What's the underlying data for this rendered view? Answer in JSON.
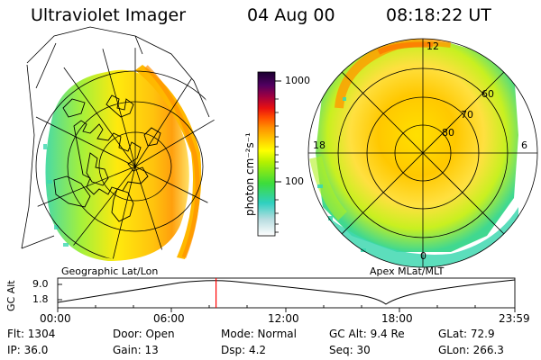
{
  "header": {
    "title": "Ultraviolet Imager",
    "date": "04 Aug 00",
    "time": "08:18:22 UT"
  },
  "geo_panel": {
    "label": "Geographic Lat/Lon"
  },
  "apex_panel": {
    "label": "Apex MLat/MLT",
    "mlt_labels": [
      "12",
      "18",
      "6",
      "0"
    ],
    "mlat_labels": [
      "60",
      "70",
      "80"
    ]
  },
  "colorbar": {
    "unit_label": "photon cm⁻²s⁻¹",
    "tick_labels": [
      "1000",
      "100"
    ]
  },
  "alt_plot": {
    "ylabel": "GC Alt",
    "yticks": [
      "9.0",
      "1.8"
    ],
    "xticks": [
      "00:00",
      "06:00",
      "12:00",
      "18:00",
      "23:59"
    ],
    "current_time_marker": "08:18:22",
    "marker_color": "#ff0000"
  },
  "status": {
    "flt": "Flt:  1304",
    "ip": "IP:  36.0",
    "door": "Door: Open",
    "gain": "Gain: 13",
    "mode": "Mode: Normal",
    "dsp": "Dsp:     4.2",
    "gc_alt": "GC Alt: 9.4 Re",
    "seq": "Seq: 30",
    "glat": "GLat:  72.9",
    "glon": "GLon: 266.3"
  }
}
